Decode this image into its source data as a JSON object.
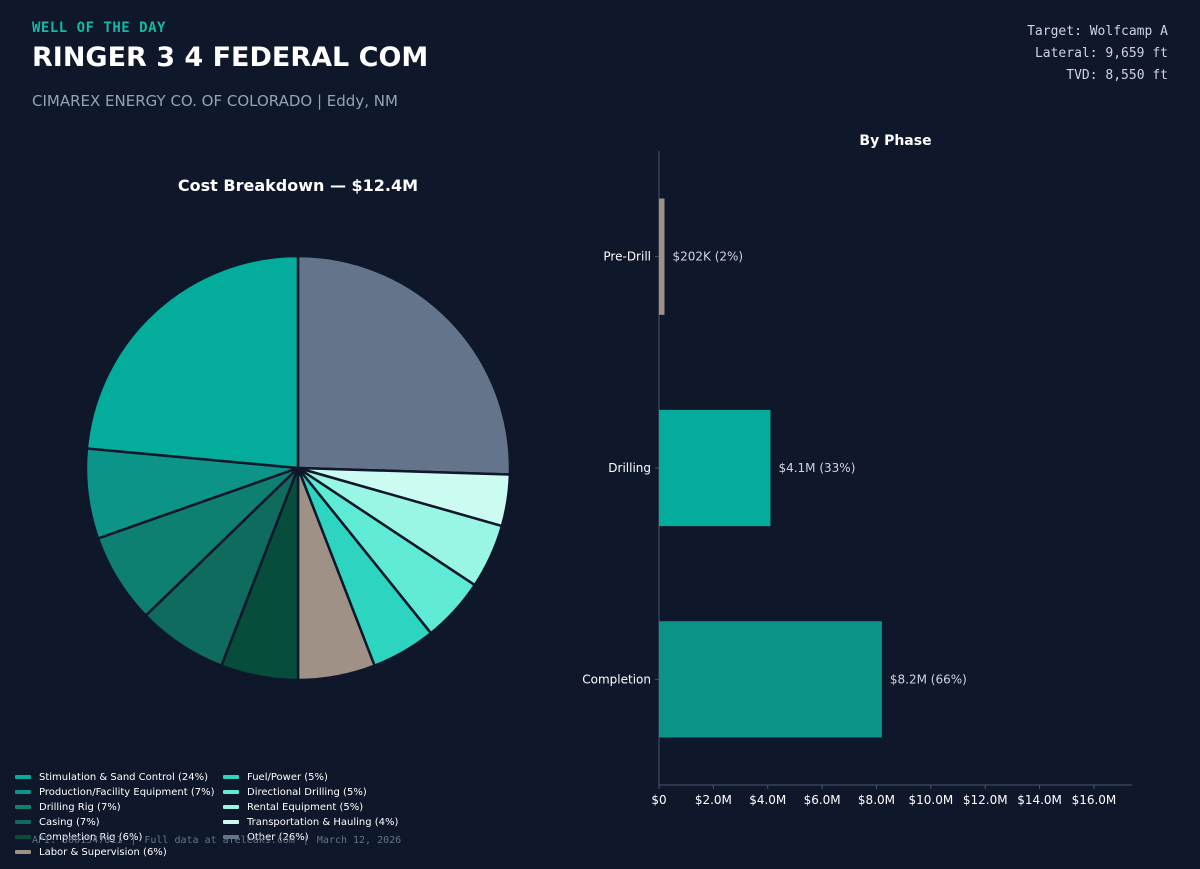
{
  "header": {
    "kicker": "WELL OF THE DAY",
    "title": "RINGER 3 4 FEDERAL COM",
    "subtitle": "CIMAREX ENERGY CO. OF COLORADO  |  Eddy, NM",
    "target": "Target: Wolfcamp A",
    "lateral": "Lateral: 9,659 ft",
    "tvd": "TVD: 8,550 ft"
  },
  "footer": {
    "api": "API: 3001547011",
    "source": "Full data at afeleaks.com",
    "date": "March 12, 2026"
  },
  "colors": {
    "background": "#0f172a",
    "accent": "#14b8a6",
    "text": "#ffffff",
    "muted": "#94a3b8",
    "axis": "#475569"
  },
  "chart_data": [
    {
      "type": "pie",
      "title": "Cost Breakdown — $12.4M",
      "start_angle_deg": 90,
      "direction": "clockwise",
      "slices": [
        {
          "label": "Other (26%)",
          "value": 26,
          "color": "#64748b"
        },
        {
          "label": "Transportation & Hauling (4%)",
          "value": 4,
          "color": "#ccfbf1"
        },
        {
          "label": "Rental Equipment (5%)",
          "value": 5,
          "color": "#99f6e4"
        },
        {
          "label": "Directional Drilling (5%)",
          "value": 5,
          "color": "#5eead4"
        },
        {
          "label": "Fuel/Power (5%)",
          "value": 5,
          "color": "#2dd4bf"
        },
        {
          "label": "Labor & Supervision (6%)",
          "value": 6,
          "color": "#a09187"
        },
        {
          "label": "Completion Rig (6%)",
          "value": 6,
          "color": "#064e3b"
        },
        {
          "label": "Casing (7%)",
          "value": 7,
          "color": "#0f6b5e"
        },
        {
          "label": "Drilling Rig (7%)",
          "value": 7,
          "color": "#0d8073"
        },
        {
          "label": "Production/Facility Equipment (7%)",
          "value": 7,
          "color": "#0d9488"
        },
        {
          "label": "Stimulation & Sand Control (24%)",
          "value": 24,
          "color": "#04ad9b"
        }
      ],
      "legend": [
        {
          "label": "Stimulation & Sand Control (24%)",
          "color": "#04ad9b"
        },
        {
          "label": "Production/Facility Equipment (7%)",
          "color": "#0d9488"
        },
        {
          "label": "Drilling Rig (7%)",
          "color": "#0d8073"
        },
        {
          "label": "Casing (7%)",
          "color": "#0f6b5e"
        },
        {
          "label": "Completion Rig (6%)",
          "color": "#064e3b"
        },
        {
          "label": "Labor & Supervision (6%)",
          "color": "#a09187"
        },
        {
          "label": "Fuel/Power (5%)",
          "color": "#2dd4bf"
        },
        {
          "label": "Directional Drilling (5%)",
          "color": "#5eead4"
        },
        {
          "label": "Rental Equipment (5%)",
          "color": "#99f6e4"
        },
        {
          "label": "Transportation & Hauling (4%)",
          "color": "#ccfbf1"
        },
        {
          "label": "Other (26%)",
          "color": "#64748b"
        }
      ],
      "legend_placement": "bottom-left"
    },
    {
      "type": "bar",
      "orientation": "horizontal",
      "title": "By Phase",
      "categories": [
        "Pre-Drill",
        "Drilling",
        "Completion"
      ],
      "values": [
        0.202,
        4.1,
        8.2
      ],
      "units": "$M",
      "data_labels": [
        "$202K (2%)",
        "$4.1M (33%)",
        "$8.2M (66%)"
      ],
      "colors": [
        "#a09187",
        "#04ad9b",
        "#0d9488"
      ],
      "xlim": [
        0,
        17.4
      ],
      "xticks": [
        0,
        2,
        4,
        6,
        8,
        10,
        12,
        14,
        16
      ],
      "xtick_labels": [
        "$0",
        "$2.0M",
        "$4.0M",
        "$6.0M",
        "$8.0M",
        "$10.0M",
        "$12.0M",
        "$14.0M",
        "$16.0M"
      ],
      "grid": false
    }
  ]
}
